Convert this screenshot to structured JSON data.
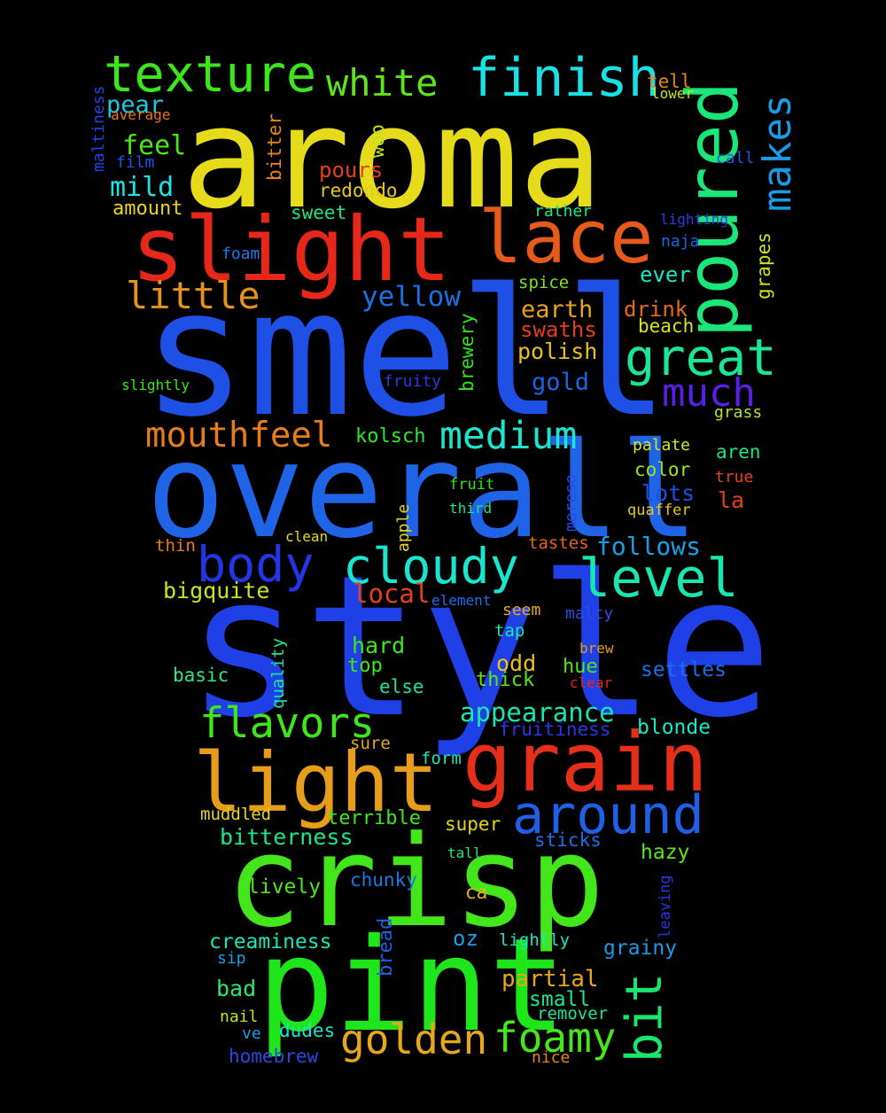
{
  "words": [
    {
      "text": "aroma",
      "color": "#e6db1a",
      "rot": 0
    },
    {
      "text": "smell",
      "color": "#1f50e6",
      "rot": 0
    },
    {
      "text": "overall",
      "color": "#1f64e6",
      "rot": 0
    },
    {
      "text": "style",
      "color": "#1f40e6",
      "rot": 0
    },
    {
      "text": "crisp",
      "color": "#43e61a",
      "rot": 0
    },
    {
      "text": "pint",
      "color": "#1fe61a",
      "rot": 0
    },
    {
      "text": "slight",
      "color": "#e6281a",
      "rot": 0
    },
    {
      "text": "lace",
      "color": "#e65a1a",
      "rot": 0
    },
    {
      "text": "grain",
      "color": "#e62f1a",
      "rot": 0
    },
    {
      "text": "light",
      "color": "#e69d1a",
      "rot": 0
    },
    {
      "text": "poured",
      "color": "#1ae67a",
      "rot": 270
    },
    {
      "text": "texture",
      "color": "#3be61a",
      "rot": 0
    },
    {
      "text": "finish",
      "color": "#1ae0e6",
      "rot": 0
    },
    {
      "text": "great",
      "color": "#1ae697",
      "rot": 0
    },
    {
      "text": "around",
      "color": "#1f60e6",
      "rot": 0
    },
    {
      "text": "cloudy",
      "color": "#1ae6cf",
      "rot": 0
    },
    {
      "text": "level",
      "color": "#1ae6b2",
      "rot": 0
    },
    {
      "text": "body",
      "color": "#2236e6",
      "rot": 0
    },
    {
      "text": "flavors",
      "color": "#3ee61a",
      "rot": 0
    },
    {
      "text": "golden",
      "color": "#e6a81a",
      "rot": 0
    },
    {
      "text": "foamy",
      "color": "#47e61a",
      "rot": 0
    },
    {
      "text": "bit",
      "color": "#1ae66e",
      "rot": 270
    },
    {
      "text": "medium",
      "color": "#1ae6d0",
      "rot": 0
    },
    {
      "text": "much",
      "color": "#5a1fe6",
      "rot": 0
    },
    {
      "text": "little",
      "color": "#e6931a",
      "rot": 0
    },
    {
      "text": "mouthfeel",
      "color": "#e67d1a",
      "rot": 0
    },
    {
      "text": "white",
      "color": "#5ae61a",
      "rot": 0
    },
    {
      "text": "makes",
      "color": "#1a9be6",
      "rot": 270
    },
    {
      "text": "yellow",
      "color": "#1a70e6",
      "rot": 0
    },
    {
      "text": "appearance",
      "color": "#1ae6b0",
      "rot": 0
    },
    {
      "text": "mild",
      "color": "#1ae6e6",
      "rot": 0
    },
    {
      "text": "feel",
      "color": "#4be61a",
      "rot": 0
    },
    {
      "text": "pear",
      "color": "#1ac9e6",
      "rot": 0
    },
    {
      "text": "amount",
      "color": "#e6d61a",
      "rot": 0
    },
    {
      "text": "sweet",
      "color": "#1ae67e",
      "rot": 0
    },
    {
      "text": "pours",
      "color": "#e6401a",
      "rot": 0
    },
    {
      "text": "redondo",
      "color": "#e6c81a",
      "rot": 0
    },
    {
      "text": "woo",
      "color": "#bfe61a",
      "rot": 270
    },
    {
      "text": "bitter",
      "color": "#e6861a",
      "rot": 270
    },
    {
      "text": "maltiness",
      "color": "#1a46e6",
      "rot": 270
    },
    {
      "text": "average",
      "color": "#e6761a",
      "rot": 0
    },
    {
      "text": "film",
      "color": "#1a56e6",
      "rot": 0
    },
    {
      "text": "foam",
      "color": "#1a7ae6",
      "rot": 0
    },
    {
      "text": "tell",
      "color": "#e6861a",
      "rot": 0
    },
    {
      "text": "lower",
      "color": "#c8e61a",
      "rot": 0
    },
    {
      "text": "call",
      "color": "#1a5ae6",
      "rot": 0
    },
    {
      "text": "rather",
      "color": "#1ae682",
      "rot": 0
    },
    {
      "text": "lighting",
      "color": "#2a3ee6",
      "rot": 0
    },
    {
      "text": "naja",
      "color": "#1a66e6",
      "rot": 0
    },
    {
      "text": "grapes",
      "color": "#cde61a",
      "rot": 270
    },
    {
      "text": "spice",
      "color": "#7ee61a",
      "rot": 0
    },
    {
      "text": "ever",
      "color": "#1ae6c4",
      "rot": 0
    },
    {
      "text": "earth",
      "color": "#e6a41a",
      "rot": 0
    },
    {
      "text": "swaths",
      "color": "#e63c1a",
      "rot": 0
    },
    {
      "text": "polish",
      "color": "#e6c21a",
      "rot": 0
    },
    {
      "text": "drink",
      "color": "#e66a1a",
      "rot": 0
    },
    {
      "text": "beach",
      "color": "#d6e61a",
      "rot": 0
    },
    {
      "text": "gold",
      "color": "#1a64e6",
      "rot": 0
    },
    {
      "text": "brewery",
      "color": "#2ee61a",
      "rot": 270
    },
    {
      "text": "fruity",
      "color": "#2a36e6",
      "rot": 0
    },
    {
      "text": "slightly",
      "color": "#3ee61a",
      "rot": 0
    },
    {
      "text": "grass",
      "color": "#b4e61a",
      "rot": 0
    },
    {
      "text": "kolsch",
      "color": "#2ee62a",
      "rot": 0
    },
    {
      "text": "palate",
      "color": "#d6e61a",
      "rot": 0
    },
    {
      "text": "aren",
      "color": "#1ae67a",
      "rot": 0
    },
    {
      "text": "color",
      "color": "#9be61a",
      "rot": 0
    },
    {
      "text": "true",
      "color": "#e6401a",
      "rot": 0
    },
    {
      "text": "lots",
      "color": "#1a50e6",
      "rot": 0
    },
    {
      "text": "la",
      "color": "#e6401a",
      "rot": 0
    },
    {
      "text": "quaffer",
      "color": "#e6c81a",
      "rot": 0
    },
    {
      "text": "fruit",
      "color": "#2ee61a",
      "rot": 0
    },
    {
      "text": "third",
      "color": "#1ae68e",
      "rot": 0
    },
    {
      "text": "moreso",
      "color": "#2a46e6",
      "rot": 270
    },
    {
      "text": "apple",
      "color": "#e6d61a",
      "rot": 270
    },
    {
      "text": "clean",
      "color": "#e6d61a",
      "rot": 0
    },
    {
      "text": "thin",
      "color": "#e67e1a",
      "rot": 0
    },
    {
      "text": "tastes",
      "color": "#e6621a",
      "rot": 0
    },
    {
      "text": "follows",
      "color": "#1a9ee6",
      "rot": 0
    },
    {
      "text": "bigquite",
      "color": "#c8e61a",
      "rot": 0
    },
    {
      "text": "local",
      "color": "#e6401a",
      "rot": 0
    },
    {
      "text": "element",
      "color": "#1a6ee6",
      "rot": 0
    },
    {
      "text": "seem",
      "color": "#e6a81a",
      "rot": 0
    },
    {
      "text": "malty",
      "color": "#2a4ee6",
      "rot": 0
    },
    {
      "text": "tap",
      "color": "#1ae6a8",
      "rot": 0
    },
    {
      "text": "brew",
      "color": "#e69e1a",
      "rot": 0
    },
    {
      "text": "hue",
      "color": "#4ee61a",
      "rot": 0
    },
    {
      "text": "clear",
      "color": "#e6281a",
      "rot": 0
    },
    {
      "text": "settles",
      "color": "#1a6ee6",
      "rot": 0
    },
    {
      "text": "quality",
      "color": "#1ae6a0",
      "rot": 270
    },
    {
      "text": "hard",
      "color": "#3ee61a",
      "rot": 0
    },
    {
      "text": "top",
      "color": "#3ee61a",
      "rot": 0
    },
    {
      "text": "basic",
      "color": "#2ee68a",
      "rot": 0
    },
    {
      "text": "odd",
      "color": "#e6c21a",
      "rot": 0
    },
    {
      "text": "thick",
      "color": "#5ae61a",
      "rot": 0
    },
    {
      "text": "else",
      "color": "#1ae69e",
      "rot": 0
    },
    {
      "text": "fruitiness",
      "color": "#2a36e6",
      "rot": 0
    },
    {
      "text": "blonde",
      "color": "#1ae6c8",
      "rot": 0
    },
    {
      "text": "sure",
      "color": "#e6a81a",
      "rot": 0
    },
    {
      "text": "form",
      "color": "#1ae6b2",
      "rot": 0
    },
    {
      "text": "muddled",
      "color": "#e6d61a",
      "rot": 0
    },
    {
      "text": "terrible",
      "color": "#3ee61a",
      "rot": 0
    },
    {
      "text": "super",
      "color": "#e6d61a",
      "rot": 0
    },
    {
      "text": "bitterness",
      "color": "#1ae68a",
      "rot": 0
    },
    {
      "text": "sticks",
      "color": "#1a6ee6",
      "rot": 0
    },
    {
      "text": "tall",
      "color": "#1ae682",
      "rot": 0
    },
    {
      "text": "hazy",
      "color": "#5ae61a",
      "rot": 0
    },
    {
      "text": "lively",
      "color": "#4ee61a",
      "rot": 0
    },
    {
      "text": "chunky",
      "color": "#1a7ae6",
      "rot": 0
    },
    {
      "text": "ca",
      "color": "#e6b21a",
      "rot": 0
    },
    {
      "text": "leaving",
      "color": "#2a36e6",
      "rot": 270
    },
    {
      "text": "creaminess",
      "color": "#1ae6b8",
      "rot": 0
    },
    {
      "text": "bread",
      "color": "#1a62e6",
      "rot": 270
    },
    {
      "text": "oz",
      "color": "#1a9ee6",
      "rot": 0
    },
    {
      "text": "lightly",
      "color": "#1ae6c4",
      "rot": 0
    },
    {
      "text": "grainy",
      "color": "#1a9ae6",
      "rot": 0
    },
    {
      "text": "sip",
      "color": "#1a9ee6",
      "rot": 0
    },
    {
      "text": "bad",
      "color": "#2ee672",
      "rot": 0
    },
    {
      "text": "partial",
      "color": "#e6a81a",
      "rot": 0
    },
    {
      "text": "small",
      "color": "#1ae696",
      "rot": 0
    },
    {
      "text": "nail",
      "color": "#bfe61a",
      "rot": 0
    },
    {
      "text": "remover",
      "color": "#1ae6a0",
      "rot": 0
    },
    {
      "text": "ve",
      "color": "#1a9ee6",
      "rot": 0
    },
    {
      "text": "dudes",
      "color": "#1ae6c8",
      "rot": 0
    },
    {
      "text": "homebrew",
      "color": "#2a46e6",
      "rot": 0
    },
    {
      "text": "nice",
      "color": "#e6861a",
      "rot": 0
    }
  ]
}
